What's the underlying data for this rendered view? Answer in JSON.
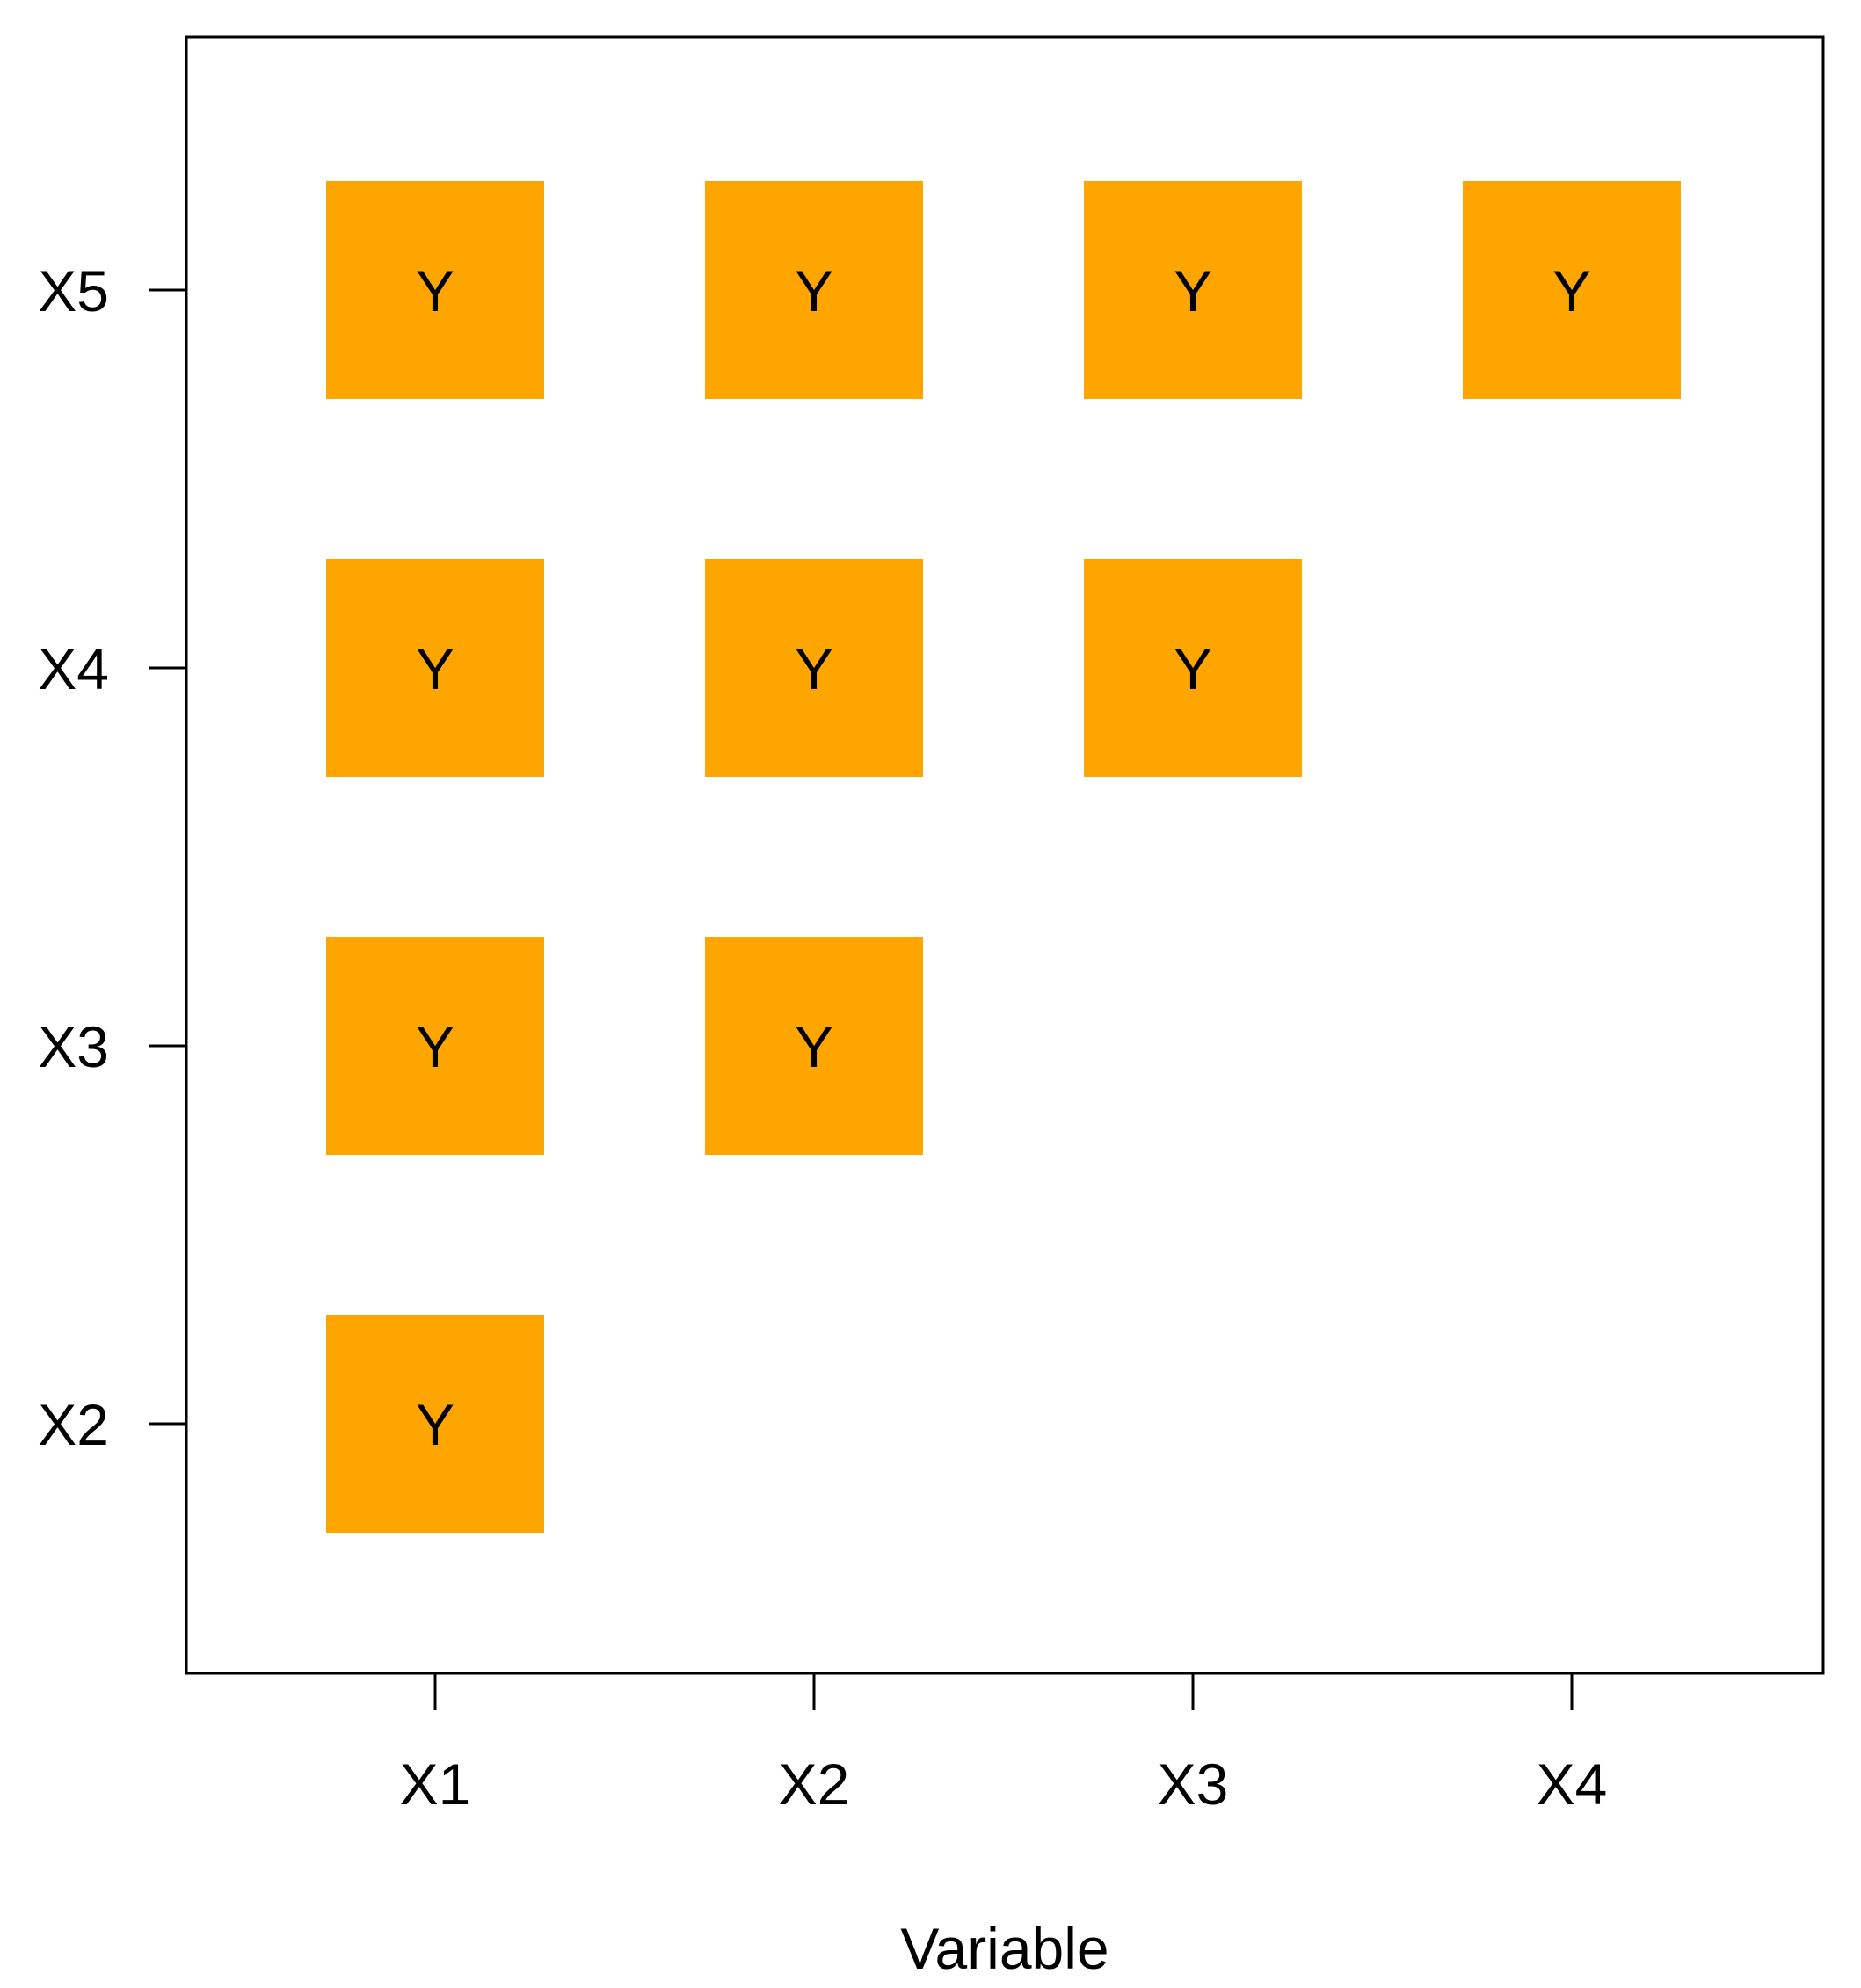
{
  "chart_data": {
    "type": "heatmap",
    "title": "",
    "xlabel": "Variable",
    "ylabel": "",
    "x_categories": [
      "X1",
      "X2",
      "X3",
      "X4"
    ],
    "y_categories": [
      "X2",
      "X3",
      "X4",
      "X5"
    ],
    "cells": [
      {
        "x": "X1",
        "y": "X5",
        "label": "Y"
      },
      {
        "x": "X2",
        "y": "X5",
        "label": "Y"
      },
      {
        "x": "X3",
        "y": "X5",
        "label": "Y"
      },
      {
        "x": "X4",
        "y": "X5",
        "label": "Y"
      },
      {
        "x": "X1",
        "y": "X4",
        "label": "Y"
      },
      {
        "x": "X2",
        "y": "X4",
        "label": "Y"
      },
      {
        "x": "X3",
        "y": "X4",
        "label": "Y"
      },
      {
        "x": "X1",
        "y": "X3",
        "label": "Y"
      },
      {
        "x": "X2",
        "y": "X3",
        "label": "Y"
      },
      {
        "x": "X1",
        "y": "X2",
        "label": "Y"
      }
    ],
    "cell_color": "#FFA500",
    "grid": false,
    "legend": "none"
  }
}
